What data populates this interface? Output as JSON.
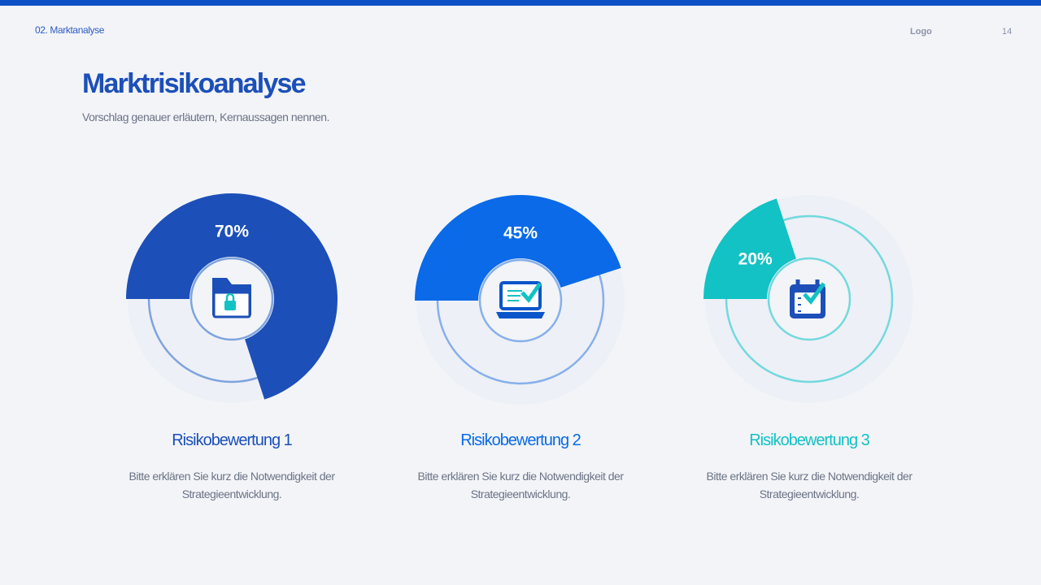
{
  "header": {
    "section": "02. Marktanalyse",
    "logo": "Logo",
    "page_number": "14"
  },
  "title": "Marktrisikoanalyse",
  "subtitle": "Vorschlag genauer erläutern, Kernaussagen nennen.",
  "chart_data": [
    {
      "type": "gauge",
      "title": "Risikobewertung 1",
      "description": "Bitte erklären Sie kurz die Notwendigkeit der Strategieentwicklung.",
      "values": [
        70
      ],
      "value_labels": [
        "70%"
      ],
      "ylim": [
        0,
        100
      ],
      "color": "#1c4fb8",
      "ring_color": "#7ea3de"
    },
    {
      "type": "gauge",
      "title": "Risikobewertung 2",
      "description": "Bitte erklären Sie kurz die Notwendigkeit der Strategieentwicklung.",
      "values": [
        45
      ],
      "value_labels": [
        "45%"
      ],
      "ylim": [
        0,
        100
      ],
      "color": "#0a6ae8",
      "ring_color": "#86b0ea"
    },
    {
      "type": "gauge",
      "title": "Risikobewertung 3",
      "description": "Bitte erklären Sie kurz die Notwendigkeit der Strategieentwicklung.",
      "values": [
        20
      ],
      "value_labels": [
        "20%"
      ],
      "ylim": [
        0,
        100
      ],
      "color": "#12c2c4",
      "ring_color": "#72d9de"
    }
  ]
}
